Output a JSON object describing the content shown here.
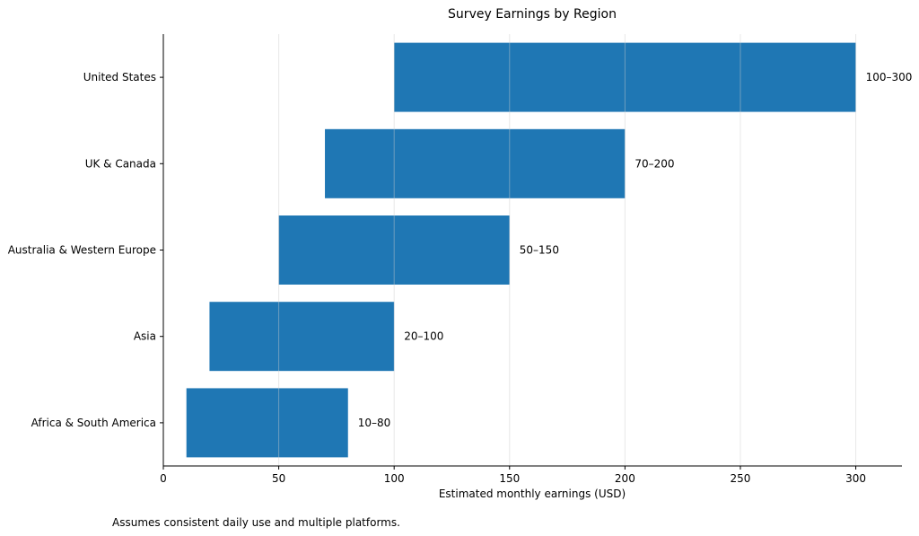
{
  "chart_data": {
    "type": "bar",
    "orientation": "horizontal",
    "title": "Survey Earnings by Region",
    "xlabel": "Estimated monthly earnings (USD)",
    "ylabel": "",
    "xlim": [
      0,
      320
    ],
    "xticks": [
      0,
      50,
      100,
      150,
      200,
      250,
      300
    ],
    "grid": "vertical",
    "bar_color": "#1f77b4",
    "categories": [
      "United States",
      "UK & Canada",
      "Australia & Western Europe",
      "Asia",
      "Africa & South America"
    ],
    "ranges": [
      [
        100,
        300
      ],
      [
        70,
        200
      ],
      [
        50,
        150
      ],
      [
        20,
        100
      ],
      [
        10,
        80
      ]
    ],
    "labels": [
      "100–300",
      "70–200",
      "50–150",
      "20–100",
      "10–80"
    ]
  },
  "footnote": "Assumes consistent daily use and multiple platforms."
}
